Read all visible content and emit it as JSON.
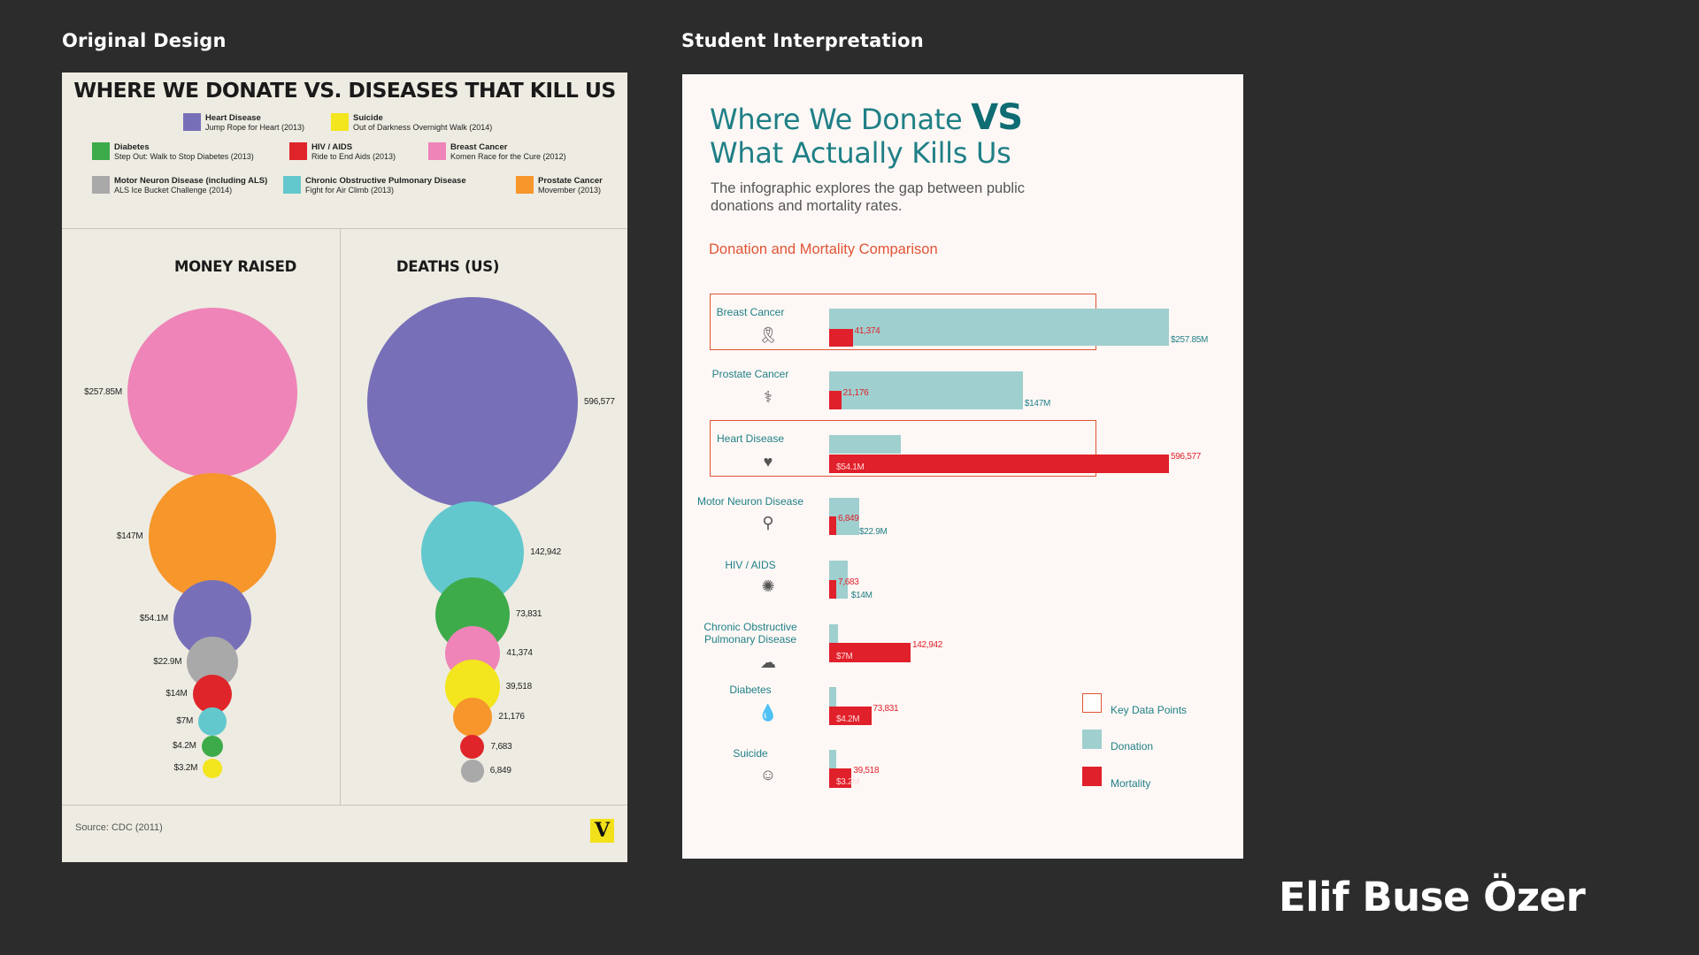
{
  "labels": {
    "left": "Original Design",
    "right": "Student Interpretation",
    "author": "Elif Buse Özer"
  },
  "original": {
    "title": "WHERE WE DONATE VS. DISEASES THAT KILL US",
    "legend": [
      {
        "name": "Heart Disease",
        "campaign": "Jump Rope for Heart (2013)",
        "color": "#7770b8"
      },
      {
        "name": "Suicide",
        "campaign": "Out of Darkness Overnight Walk (2014)",
        "color": "#f3e51e"
      },
      {
        "name": "Diabetes",
        "campaign": "Step Out: Walk to Stop Diabetes (2013)",
        "color": "#3dab4a"
      },
      {
        "name": "HIV / AIDS",
        "campaign": "Ride to End Aids (2013)",
        "color": "#e0252a"
      },
      {
        "name": "Breast Cancer",
        "campaign": "Komen Race for the Cure (2012)",
        "color": "#ee84b7"
      },
      {
        "name": "Motor Neuron Disease (including ALS)",
        "campaign": "ALS Ice Bucket Challenge (2014)",
        "color": "#a9a9a9"
      },
      {
        "name": "Chronic Obstructive Pulmonary Disease",
        "campaign": "Fight for Air Climb (2013)",
        "color": "#62c8ce"
      },
      {
        "name": "Prostate Cancer",
        "campaign": "Movember (2013)",
        "color": "#f6962b"
      }
    ],
    "money_header": "MONEY RAISED",
    "deaths_header": "DEATHS (US)",
    "source": "Source: CDC (2011)",
    "logo": "V"
  },
  "student": {
    "title_line1": "Where We Donate",
    "title_vs": "VS",
    "title_line2": "What Actually Kills Us",
    "subtitle": "The infographic explores the gap between public donations and mortality rates.",
    "section_title": "Donation and Mortality Comparison",
    "legend": [
      {
        "label": "Key Data Points",
        "kind": "outline"
      },
      {
        "label": "Donation",
        "kind": "donation"
      },
      {
        "label": "Mortality",
        "kind": "mortality"
      }
    ]
  },
  "colors": {
    "donation": "#9fcfcf",
    "mortality": "#e0202a",
    "highlight": "#e05436",
    "teal_text": "#1f7f86"
  },
  "chart_data": [
    {
      "type": "bubble",
      "title": "MONEY RAISED",
      "categories": [
        "Breast Cancer",
        "Prostate Cancer",
        "Heart Disease",
        "Motor Neuron Disease (including ALS)",
        "HIV / AIDS",
        "Chronic Obstructive Pulmonary Disease",
        "Diabetes",
        "Suicide"
      ],
      "values": [
        257.85,
        147,
        54.1,
        22.9,
        14,
        7,
        4.2,
        3.2
      ],
      "value_labels": [
        "$257.85M",
        "$147M",
        "$54.1M",
        "$22.9M",
        "$14M",
        "$7M",
        "$4.2M",
        "$3.2M"
      ],
      "unit": "USD millions"
    },
    {
      "type": "bubble",
      "title": "DEATHS (US)",
      "categories": [
        "Heart Disease",
        "Chronic Obstructive Pulmonary Disease",
        "Diabetes",
        "Breast Cancer",
        "Suicide",
        "Prostate Cancer",
        "HIV / AIDS",
        "Motor Neuron Disease (including ALS)"
      ],
      "values": [
        596577,
        142942,
        73831,
        41374,
        39518,
        21176,
        7683,
        6849
      ],
      "value_labels": [
        "596,577",
        "142,942",
        "73,831",
        "41,374",
        "39,518",
        "21,176",
        "7,683",
        "6,849"
      ]
    },
    {
      "type": "bar",
      "title": "Donation and Mortality Comparison",
      "categories": [
        "Breast Cancer",
        "Prostate Cancer",
        "Heart Disease",
        "Motor Neuron Disease",
        "HIV / AIDS",
        "Chronic Obstructive Pulmonary Disease",
        "Diabetes",
        "Suicide"
      ],
      "highlighted": [
        "Breast Cancer",
        "Heart Disease"
      ],
      "series": [
        {
          "name": "Donation",
          "values": [
            257.85,
            147,
            54.1,
            22.9,
            14,
            7,
            4.2,
            3.2
          ],
          "value_labels": [
            "$257.85M",
            "$147M",
            "$54.1M",
            "$22.9M",
            "$14M",
            "$7M",
            "$4.2M",
            "$3.2M"
          ]
        },
        {
          "name": "Mortality",
          "values": [
            41374,
            21176,
            596577,
            6849,
            7683,
            142942,
            73831,
            39518
          ],
          "value_labels": [
            "41,374",
            "21,176",
            "596,577",
            "6,849",
            "7,683",
            "142,942",
            "73,831",
            "39,518"
          ]
        }
      ]
    }
  ]
}
